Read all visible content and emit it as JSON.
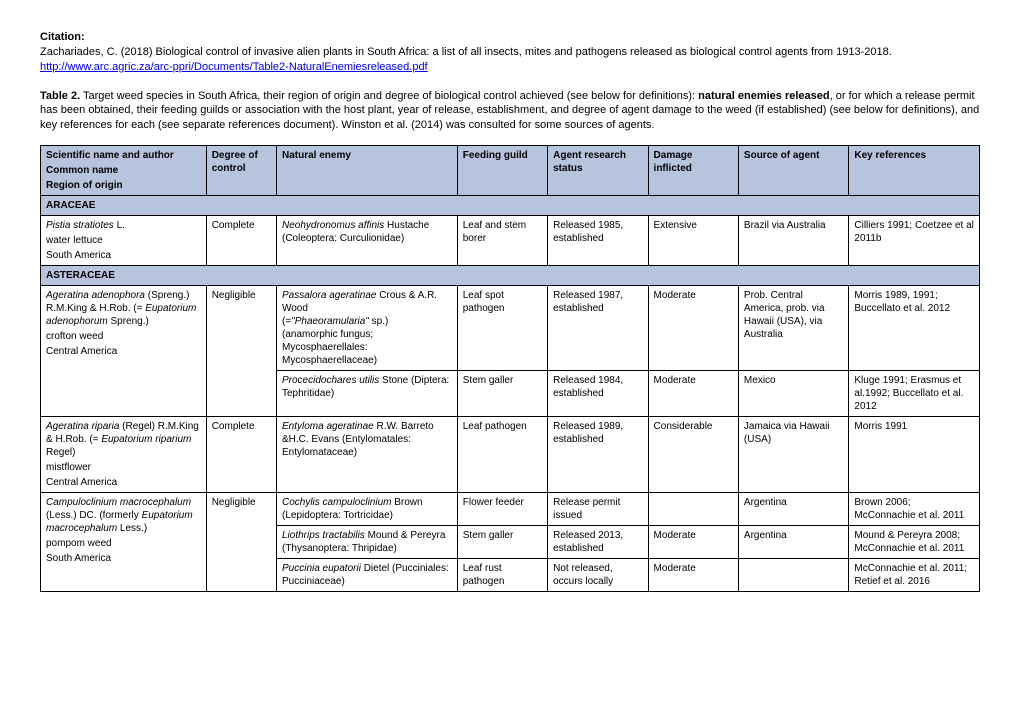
{
  "citation": {
    "label": "Citation:",
    "text_before_link": "Zachariades, C. (2018) Biological control of invasive alien plants in South Africa: a list of all insects, mites and pathogens released as biological control agents from 1913-2018. ",
    "link_text": "http://www.arc.agric.za/arc-ppri/Documents/Table2-NaturalEnemiesreleased.pdf"
  },
  "caption": {
    "label": "Table 2.",
    "part1": " Target weed species in South Africa, their region of origin and degree of biological control achieved (see below for definitions): ",
    "bold1": "natural enemies released",
    "part2": ", or for which a release permit has been obtained, their feeding guilds or association with the host plant, year of release, establishment, and degree of agent damage to the weed (if established) (see below for definitions), and key references for each (see separate references document). Winston et al. (2014) was consulted for some sources of agents."
  },
  "headers": {
    "sci_line1": "Scientific name and author",
    "sci_line2": "Common name",
    "sci_line3": "Region of origin",
    "degree": "Degree of control",
    "enemy": "Natural enemy",
    "guild": "Feeding guild",
    "status": "Agent research status",
    "damage": "Damage inflicted",
    "source": "Source of agent",
    "refs": "Key references"
  },
  "family1": "ARACEAE",
  "row1": {
    "sci_italic": "Pistia stratiotes",
    "sci_auth": " L.",
    "common": "water lettuce",
    "region": "South America",
    "degree": "Complete",
    "enemy_italic": "Neohydronomus affinis",
    "enemy_rest": " Hustache (Coleoptera: Curculionidae)",
    "guild": "Leaf and stem borer",
    "status": "Released 1985, established",
    "damage": "Extensive",
    "source": "Brazil via Australia",
    "refs": "Cilliers 1991; Coetzee et al 2011b"
  },
  "family2": "ASTERACEAE",
  "row2": {
    "sci_italic1": "Ageratina adenophora",
    "sci_auth1": " (Spreng.) R.M.King & H.Rob. (= ",
    "sci_italic2": "Eupatorium adenophorum",
    "sci_auth2": " Spreng.)",
    "common": "crofton weed",
    "region": "Central America",
    "degree": "Negligible",
    "enemy_italic1": "Passalora ageratinae",
    "enemy_rest1": " Crous & A.R. Wood",
    "enemy_line2_pre": "(=",
    "enemy_line2_italic": "\"Phaeoramularia\"",
    "enemy_line2_post": " sp.)",
    "enemy_line3": "(anamorphic fungus; Mycosphaerellales: Mycosphaerellaceae)",
    "guild": "Leaf spot pathogen",
    "status": "Released 1987, established",
    "damage": "Moderate",
    "source": "Prob. Central America, prob. via Hawaii (USA), via Australia",
    "refs": "Morris 1989, 1991; Buccellato et al. 2012"
  },
  "row2b": {
    "enemy_italic": "Procecidochares utilis",
    "enemy_rest": " Stone (Diptera: Tephritidae)",
    "guild": "Stem galler",
    "status": "Released 1984, established",
    "damage": "Moderate",
    "source": "Mexico",
    "refs": "Kluge 1991; Erasmus et al.1992; Buccellato et al. 2012"
  },
  "row3": {
    "sci_italic1": "Ageratina riparia",
    "sci_auth1": " (Regel) R.M.King & H.Rob. (= ",
    "sci_italic2": "Eupatorium riparium",
    "sci_auth2": " Regel)",
    "common": "mistflower",
    "region": "Central America",
    "degree": "Complete",
    "enemy_italic": "Entyloma ageratinae",
    "enemy_rest": " R.W. Barreto &H.C. Evans (Entylomatales: Entylomataceae)",
    "guild": "Leaf pathogen",
    "status": "Released 1989, established",
    "damage": "Considerable",
    "source": "Jamaica via Hawaii (USA)",
    "refs": "Morris 1991"
  },
  "row4": {
    "sci_italic1": "Campuloclinium macrocephalum",
    "sci_auth1": " (Less.) DC. (formerly ",
    "sci_italic2": "Eupatorium macrocephalum",
    "sci_auth2": " Less.)",
    "common": "pompom weed",
    "region": "South America",
    "degree": "Negligible",
    "enemy_italic": "Cochylis campuloclinium",
    "enemy_rest": " Brown (Lepidoptera: Tortricidae)",
    "guild": "Flower feeder",
    "status": "Release permit issued",
    "damage": "",
    "source": "Argentina",
    "refs": "Brown 2006; McConnachie et al. 2011"
  },
  "row4b": {
    "enemy_italic": "Liothrips tractabilis",
    "enemy_rest": " Mound & Pereyra (Thysanoptera: Thripidae)",
    "guild": "Stem galler",
    "status": "Released 2013, established",
    "damage": "Moderate",
    "source": "Argentina",
    "refs": "Mound & Pereyra 2008; McConnachie et al. 2011"
  },
  "row4c": {
    "enemy_italic": "Puccinia eupatorii",
    "enemy_rest": " Dietel (Pucciniales: Pucciniaceae)",
    "guild": "Leaf rust pathogen",
    "status": "Not released, occurs locally",
    "damage": "Moderate",
    "source": "",
    "refs": "McConnachie et al. 2011; Retief et al. 2016"
  }
}
